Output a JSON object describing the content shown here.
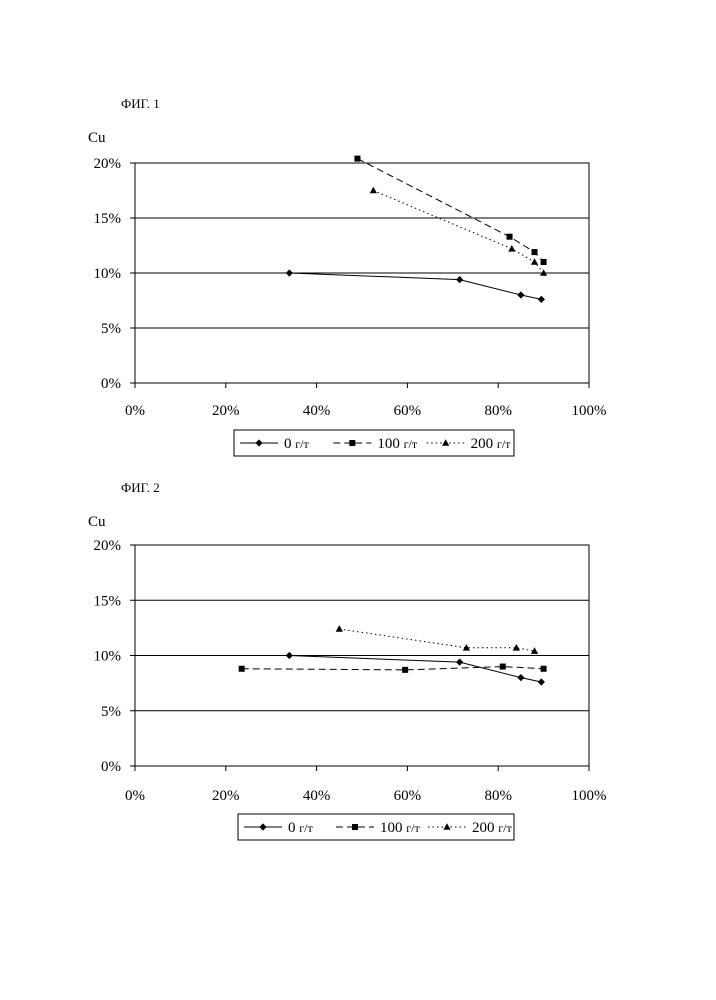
{
  "chart_data": [
    {
      "type": "line",
      "title": "ФИГ. 1",
      "ylabel": "Cu",
      "xlabel": "",
      "xlim": [
        0,
        100
      ],
      "ylim": [
        0,
        20
      ],
      "xticks": [
        "0%",
        "20%",
        "40%",
        "60%",
        "80%",
        "100%"
      ],
      "yticks": [
        "0%",
        "5%",
        "10%",
        "15%",
        "20%"
      ],
      "grid": "horizontal",
      "legend": "bottom",
      "series": [
        {
          "name": "0",
          "unit": "г/т",
          "marker": "diamond",
          "dash": "solid",
          "x": [
            34,
            71.5,
            85,
            89.5
          ],
          "y": [
            10,
            9.4,
            8.0,
            7.6
          ]
        },
        {
          "name": "100",
          "unit": "г/т",
          "marker": "square",
          "dash": "dashed",
          "x": [
            49,
            82.5,
            88,
            90
          ],
          "y": [
            20.4,
            13.3,
            11.9,
            11.0
          ]
        },
        {
          "name": "200",
          "unit": "г/т",
          "marker": "triangle",
          "dash": "dotted",
          "x": [
            52.5,
            83,
            88,
            90
          ],
          "y": [
            17.5,
            12.2,
            11.0,
            10.0
          ]
        }
      ]
    },
    {
      "type": "line",
      "title": "ФИГ. 2",
      "ylabel": "Cu",
      "xlabel": "",
      "xlim": [
        0,
        100
      ],
      "ylim": [
        0,
        20
      ],
      "xticks": [
        "0%",
        "20%",
        "40%",
        "60%",
        "80%",
        "100%"
      ],
      "yticks": [
        "0%",
        "5%",
        "10%",
        "15%",
        "20%"
      ],
      "grid": "horizontal",
      "legend": "bottom",
      "series": [
        {
          "name": "0",
          "unit": "г/т",
          "marker": "diamond",
          "dash": "solid",
          "x": [
            34,
            71.5,
            85,
            89.5
          ],
          "y": [
            10,
            9.4,
            8.0,
            7.6
          ]
        },
        {
          "name": "100",
          "unit": "г/т",
          "marker": "square",
          "dash": "dashed",
          "x": [
            23.5,
            59.5,
            81,
            90
          ],
          "y": [
            8.8,
            8.7,
            9.0,
            8.8
          ]
        },
        {
          "name": "200",
          "unit": "г/т",
          "marker": "triangle",
          "dash": "dotted",
          "x": [
            45,
            73,
            84,
            88
          ],
          "y": [
            12.4,
            10.7,
            10.7,
            10.4
          ]
        }
      ]
    }
  ]
}
